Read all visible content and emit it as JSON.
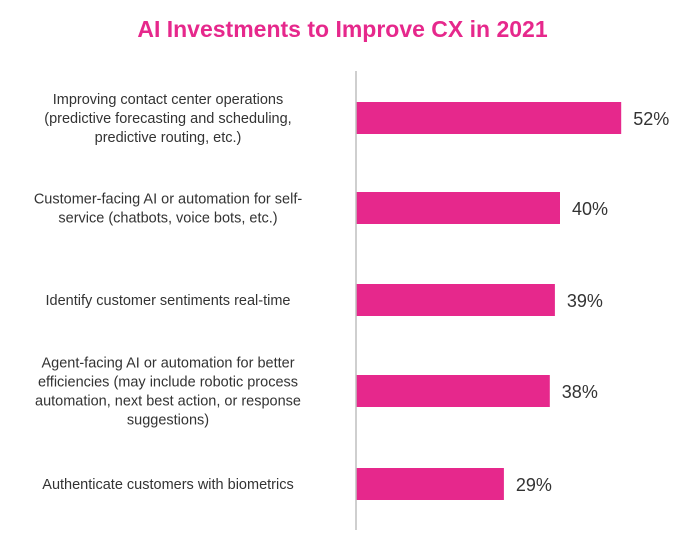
{
  "chart_data": {
    "type": "bar",
    "orientation": "horizontal",
    "title": "AI Investments to Improve CX in 2021",
    "categories": [
      [
        "Improving contact center operations",
        "(predictive forecasting and scheduling,",
        "predictive routing, etc.)"
      ],
      [
        "Customer-facing AI or automation for self-",
        "service (chatbots, voice bots, etc.)"
      ],
      [
        "Identify customer sentiments real-time"
      ],
      [
        "Agent-facing AI or automation for better",
        "efficiencies (may include robotic process",
        "automation, next best action, or response",
        "suggestions)"
      ],
      [
        "Authenticate customers with biometrics"
      ]
    ],
    "values": [
      52,
      40,
      39,
      38,
      29
    ],
    "value_labels": [
      "52%",
      "40%",
      "39%",
      "38%",
      "29%"
    ],
    "xlabel": "",
    "ylabel": "",
    "xlim": [
      0,
      60
    ],
    "grid": false,
    "legend": "none",
    "bar_color": "#E6288C",
    "axis_color": "#BFBFBF"
  }
}
